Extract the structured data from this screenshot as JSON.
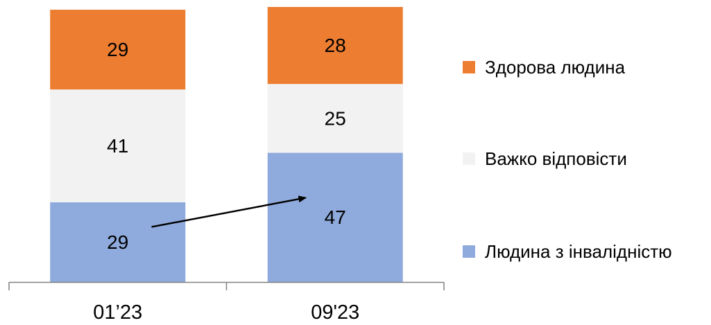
{
  "chart_data": {
    "type": "bar",
    "stacked": true,
    "orientation": "vertical",
    "categories": [
      "01’23",
      "09'23"
    ],
    "series": [
      {
        "name": "Людина з інвалідністю",
        "values": [
          29,
          47
        ],
        "color": "#8faadc"
      },
      {
        "name": "Важко відповісти",
        "values": [
          41,
          25
        ],
        "color": "#f2f2f2"
      },
      {
        "name": "Здорова людина",
        "values": [
          29,
          28
        ],
        "color": "#ed7d31"
      }
    ],
    "annotations": [
      {
        "type": "arrow",
        "from_category": "01’23",
        "to_category": "09'23",
        "series": "Людина з інвалідністю"
      }
    ],
    "legend": {
      "placement": "right",
      "order": [
        "Здорова людина",
        "Важко відповісти",
        "Людина з інвалідністю"
      ]
    },
    "grid": false,
    "axis_line_color": "#808080",
    "ylim": [
      0,
      99
    ]
  }
}
